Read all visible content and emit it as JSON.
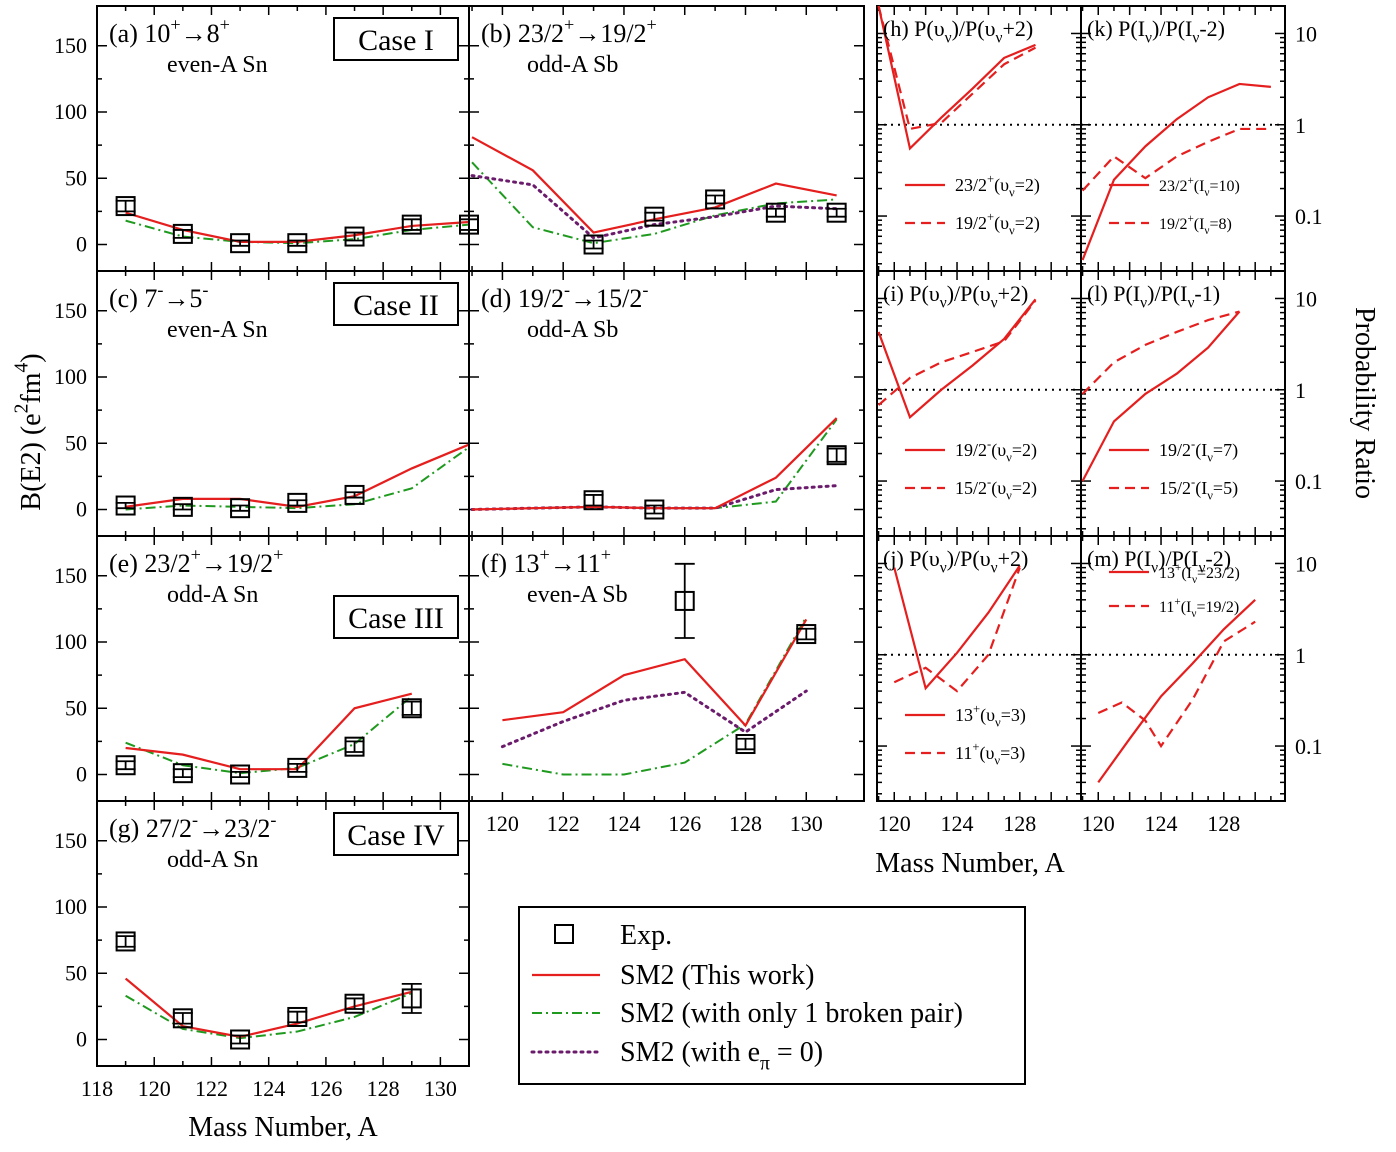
{
  "colors": {
    "sm2": "#e51e1e",
    "one_pair": "#1f9a1f",
    "e_pi_zero": "#6b1b6b"
  },
  "ylabel_left": "B(E2) (e²fm⁴)",
  "ylabel_right": "Probability Ratio",
  "xlabel": "Mass Number, A",
  "legend": [
    "Exp.",
    "SM2 (This work)",
    "SM2 (with only 1 broken pair)",
    "SM2 (with e_π = 0)"
  ],
  "chart_data": [
    {
      "id": "a",
      "type": "line",
      "label": "(a) 10⁺→8⁺",
      "sublabel": "even-A Sn",
      "case": "Case I",
      "ylim": [
        -20,
        180
      ],
      "xlim": [
        118,
        131
      ],
      "exp": {
        "x": [
          119,
          121,
          123,
          125,
          127,
          129,
          131
        ],
        "y": [
          29,
          8,
          1,
          1,
          6,
          15,
          15
        ],
        "err": [
          4,
          3,
          2,
          2,
          3,
          4,
          4
        ]
      },
      "sm2": {
        "x": [
          119,
          121,
          123,
          125,
          127,
          129,
          131
        ],
        "y": [
          24,
          11,
          2,
          2,
          7,
          14,
          17
        ]
      },
      "one": {
        "x": [
          119,
          121,
          123,
          125,
          127,
          129,
          131
        ],
        "y": [
          18,
          6,
          2,
          1,
          4,
          11,
          15
        ]
      },
      "pi0": null
    },
    {
      "id": "b",
      "type": "line",
      "label": "(b) 23/2⁺→19/2⁺",
      "sublabel": "odd-A Sb",
      "ylim": [
        -20,
        180
      ],
      "xlim": [
        118.9,
        131.9
      ],
      "exp": {
        "x": [
          123,
          125,
          127,
          129,
          131
        ],
        "y": [
          0,
          21,
          34,
          24,
          24
        ],
        "err": [
          3,
          3,
          3,
          3,
          3
        ]
      },
      "sm2": {
        "x": [
          119,
          121,
          123,
          125,
          127,
          129,
          131
        ],
        "y": [
          81,
          56,
          9,
          19,
          28,
          46,
          37
        ]
      },
      "one": {
        "x": [
          119,
          121,
          123,
          125,
          127,
          129,
          131
        ],
        "y": [
          62,
          13,
          1,
          8,
          22,
          31,
          34
        ]
      },
      "pi0": {
        "x": [
          119,
          121,
          123,
          125,
          127,
          129,
          131
        ],
        "y": [
          52,
          45,
          5,
          15,
          21,
          29,
          27
        ]
      }
    },
    {
      "id": "c",
      "type": "line",
      "label": "(c) 7⁻→5⁻",
      "sublabel": "even-A Sn",
      "case": "Case II",
      "ylim": [
        -20,
        180
      ],
      "xlim": [
        118,
        131
      ],
      "exp": {
        "x": [
          119,
          121,
          123,
          125,
          127
        ],
        "y": [
          3,
          2,
          1,
          5,
          11
        ],
        "err": [
          2,
          2,
          2,
          2,
          2
        ]
      },
      "sm2": {
        "x": [
          119,
          121,
          123,
          125,
          127,
          129,
          131
        ],
        "y": [
          2,
          8,
          8,
          2,
          10,
          31,
          49
        ]
      },
      "one": {
        "x": [
          119,
          121,
          123,
          125,
          127,
          129,
          131
        ],
        "y": [
          0,
          3,
          2,
          1,
          4,
          16,
          47
        ]
      },
      "pi0": null
    },
    {
      "id": "d",
      "type": "line",
      "label": "(d) 19/2⁻→15/2⁻",
      "sublabel": "odd-A Sb",
      "ylim": [
        -20,
        180
      ],
      "xlim": [
        118.9,
        131.9
      ],
      "exp": {
        "x": [
          123,
          125,
          131
        ],
        "y": [
          7,
          0,
          41
        ],
        "err": [
          4,
          3,
          5
        ]
      },
      "sm2": {
        "x": [
          119,
          121,
          123,
          125,
          127,
          129,
          131
        ],
        "y": [
          0,
          1,
          2,
          1,
          1,
          24,
          69
        ]
      },
      "one": {
        "x": [
          119,
          121,
          123,
          125,
          127,
          129,
          131
        ],
        "y": [
          0,
          1,
          2,
          1,
          1,
          6,
          68
        ]
      },
      "pi0": {
        "x": [
          119,
          121,
          123,
          125,
          127,
          129,
          131
        ],
        "y": [
          0,
          1,
          2,
          1,
          1,
          15,
          18
        ]
      }
    },
    {
      "id": "e",
      "type": "line",
      "label": "(e) 23/2⁺→19/2⁺",
      "sublabel": "odd-A Sn",
      "case": "Case III",
      "ylim": [
        -20,
        180
      ],
      "xlim": [
        118,
        131
      ],
      "exp": {
        "x": [
          119,
          121,
          123,
          125,
          127,
          129
        ],
        "y": [
          7,
          1,
          0,
          5,
          21,
          50
        ],
        "err": [
          3,
          3,
          2,
          3,
          4,
          5
        ]
      },
      "sm2": {
        "x": [
          119,
          121,
          123,
          125,
          127,
          129
        ],
        "y": [
          20,
          15,
          4,
          4,
          50,
          61
        ]
      },
      "one": {
        "x": [
          119,
          121,
          123,
          125,
          127,
          129
        ],
        "y": [
          24,
          7,
          1,
          5,
          23,
          59
        ]
      },
      "pi0": null
    },
    {
      "id": "f",
      "type": "line",
      "label": "(f) 13⁺→11⁺",
      "sublabel": "even-A Sb",
      "ylim": [
        -20,
        180
      ],
      "xlim": [
        118.9,
        131.9
      ],
      "exp": {
        "x": [
          126,
          128,
          130
        ],
        "y": [
          131,
          23,
          106
        ],
        "err": [
          28,
          4,
          4
        ]
      },
      "sm2": {
        "x": [
          120,
          122,
          124,
          126,
          128,
          130
        ],
        "y": [
          41,
          47,
          75,
          87,
          37,
          117
        ]
      },
      "one": {
        "x": [
          120,
          122,
          124,
          126,
          128,
          130
        ],
        "y": [
          8,
          0,
          0,
          9,
          38,
          119
        ]
      },
      "pi0": {
        "x": [
          120,
          122,
          124,
          126,
          128,
          130
        ],
        "y": [
          21,
          40,
          56,
          62,
          32,
          63
        ]
      }
    },
    {
      "id": "g",
      "type": "line",
      "label": "(g) 27/2⁻→23/2⁻",
      "sublabel": "odd-A Sn",
      "case": "Case IV",
      "ylim": [
        -20,
        180
      ],
      "xlim": [
        118,
        131
      ],
      "exp": {
        "x": [
          119,
          121,
          123,
          125,
          127,
          129
        ],
        "y": [
          74,
          16,
          0,
          17,
          27,
          31
        ],
        "err": [
          4,
          4,
          3,
          4,
          4,
          11
        ]
      },
      "sm2": {
        "x": [
          119,
          121,
          123,
          125,
          127,
          129
        ],
        "y": [
          46,
          10,
          2,
          12,
          25,
          36
        ]
      },
      "one": {
        "x": [
          119,
          121,
          123,
          125,
          127,
          129
        ],
        "y": [
          33,
          8,
          1,
          6,
          17,
          35
        ]
      },
      "pi0": null
    },
    {
      "id": "h",
      "type": "line",
      "scale": "log",
      "label": "(h) P(υ_ν)/P(υ_ν+2)",
      "xlim": [
        118.9,
        131.9
      ],
      "ylim": [
        0.025,
        20
      ],
      "series": [
        {
          "name": "23/2⁺(υ_ν=2)",
          "style": "solid",
          "x": [
            119,
            121,
            123,
            125,
            127,
            129
          ],
          "y": [
            20,
            0.55,
            1.2,
            2.5,
            5.4,
            7.5
          ]
        },
        {
          "name": "19/2⁺(υ_ν=2)",
          "style": "dashed",
          "x": [
            119,
            121,
            123,
            125,
            127,
            129
          ],
          "y": [
            20,
            0.9,
            1.05,
            2.2,
            4.6,
            7.0
          ]
        }
      ]
    },
    {
      "id": "k",
      "type": "line",
      "scale": "log",
      "label": "(k) P(I_ν)/P(I_ν-2)",
      "xlim": [
        118.9,
        131.9
      ],
      "ylim": [
        0.025,
        20
      ],
      "series": [
        {
          "name": "23/2⁺(I_ν=10)",
          "style": "solid",
          "x": [
            119,
            121,
            123,
            125,
            127,
            129,
            131
          ],
          "y": [
            0.033,
            0.25,
            0.58,
            1.15,
            2.0,
            2.8,
            2.6
          ]
        },
        {
          "name": "19/2⁺(I_ν=8)",
          "style": "dashed",
          "x": [
            119,
            121,
            123,
            125,
            127,
            129,
            131
          ],
          "y": [
            0.19,
            0.45,
            0.26,
            0.45,
            0.65,
            0.9,
            0.9
          ]
        }
      ]
    },
    {
      "id": "i",
      "type": "line",
      "scale": "log",
      "label": "(i) P(υ_ν)/P(υ_ν+2)",
      "xlim": [
        118.9,
        131.9
      ],
      "ylim": [
        0.025,
        20
      ],
      "series": [
        {
          "name": "19/2⁻(υ_ν=2)",
          "style": "solid",
          "x": [
            119,
            121,
            123,
            125,
            127,
            129
          ],
          "y": [
            4.3,
            0.5,
            1.0,
            1.85,
            3.6,
            9.8
          ]
        },
        {
          "name": "15/2⁻(υ_ν=2)",
          "style": "dashed",
          "x": [
            119,
            121,
            123,
            125,
            127,
            129
          ],
          "y": [
            0.68,
            1.35,
            2.0,
            2.6,
            3.4,
            9.5
          ]
        }
      ]
    },
    {
      "id": "l",
      "type": "line",
      "scale": "log",
      "label": "(l) P(I_ν)/P(I_ν-1)",
      "xlim": [
        118.9,
        131.9
      ],
      "ylim": [
        0.025,
        20
      ],
      "series": [
        {
          "name": "19/2⁻(I_ν=7)",
          "style": "solid",
          "x": [
            119,
            121,
            123,
            125,
            127,
            129
          ],
          "y": [
            0.1,
            0.45,
            0.9,
            1.5,
            2.9,
            7.2
          ]
        },
        {
          "name": "15/2⁻(I_ν=5)",
          "style": "dashed",
          "x": [
            119,
            121,
            123,
            125,
            127,
            129
          ],
          "y": [
            0.9,
            2.0,
            3.1,
            4.3,
            5.8,
            7.2
          ]
        }
      ]
    },
    {
      "id": "j",
      "type": "line",
      "scale": "log",
      "label": "(j) P(υ_ν)/P(υ_ν+2)",
      "xlim": [
        118.9,
        131.9
      ],
      "ylim": [
        0.025,
        20
      ],
      "series": [
        {
          "name": "13⁺(υ_ν=3)",
          "style": "solid",
          "x": [
            120,
            122,
            124,
            126,
            128
          ],
          "y": [
            9,
            0.43,
            1.05,
            2.9,
            9.5
          ]
        },
        {
          "name": "11⁺(υ_ν=3)",
          "style": "dashed",
          "x": [
            120,
            122,
            124,
            126,
            128
          ],
          "y": [
            0.5,
            0.72,
            0.4,
            1.0,
            9.0
          ]
        }
      ]
    },
    {
      "id": "m",
      "type": "line",
      "scale": "log",
      "label": "(m) P(I_ν)/P(I_ν-2)",
      "xlim": [
        118.9,
        131.9
      ],
      "ylim": [
        0.025,
        20
      ],
      "series": [
        {
          "name": "13⁺(I_ν=23/2)",
          "style": "solid",
          "x": [
            120,
            122,
            124,
            126,
            128,
            130
          ],
          "y": [
            0.04,
            0.12,
            0.35,
            0.8,
            1.9,
            4.0
          ]
        },
        {
          "name": "11⁺(I_ν=19/2)",
          "style": "dashed",
          "x": [
            120,
            121.5,
            123,
            124,
            126,
            128,
            130
          ],
          "y": [
            0.23,
            0.3,
            0.19,
            0.1,
            0.32,
            1.4,
            2.3
          ]
        }
      ]
    }
  ]
}
